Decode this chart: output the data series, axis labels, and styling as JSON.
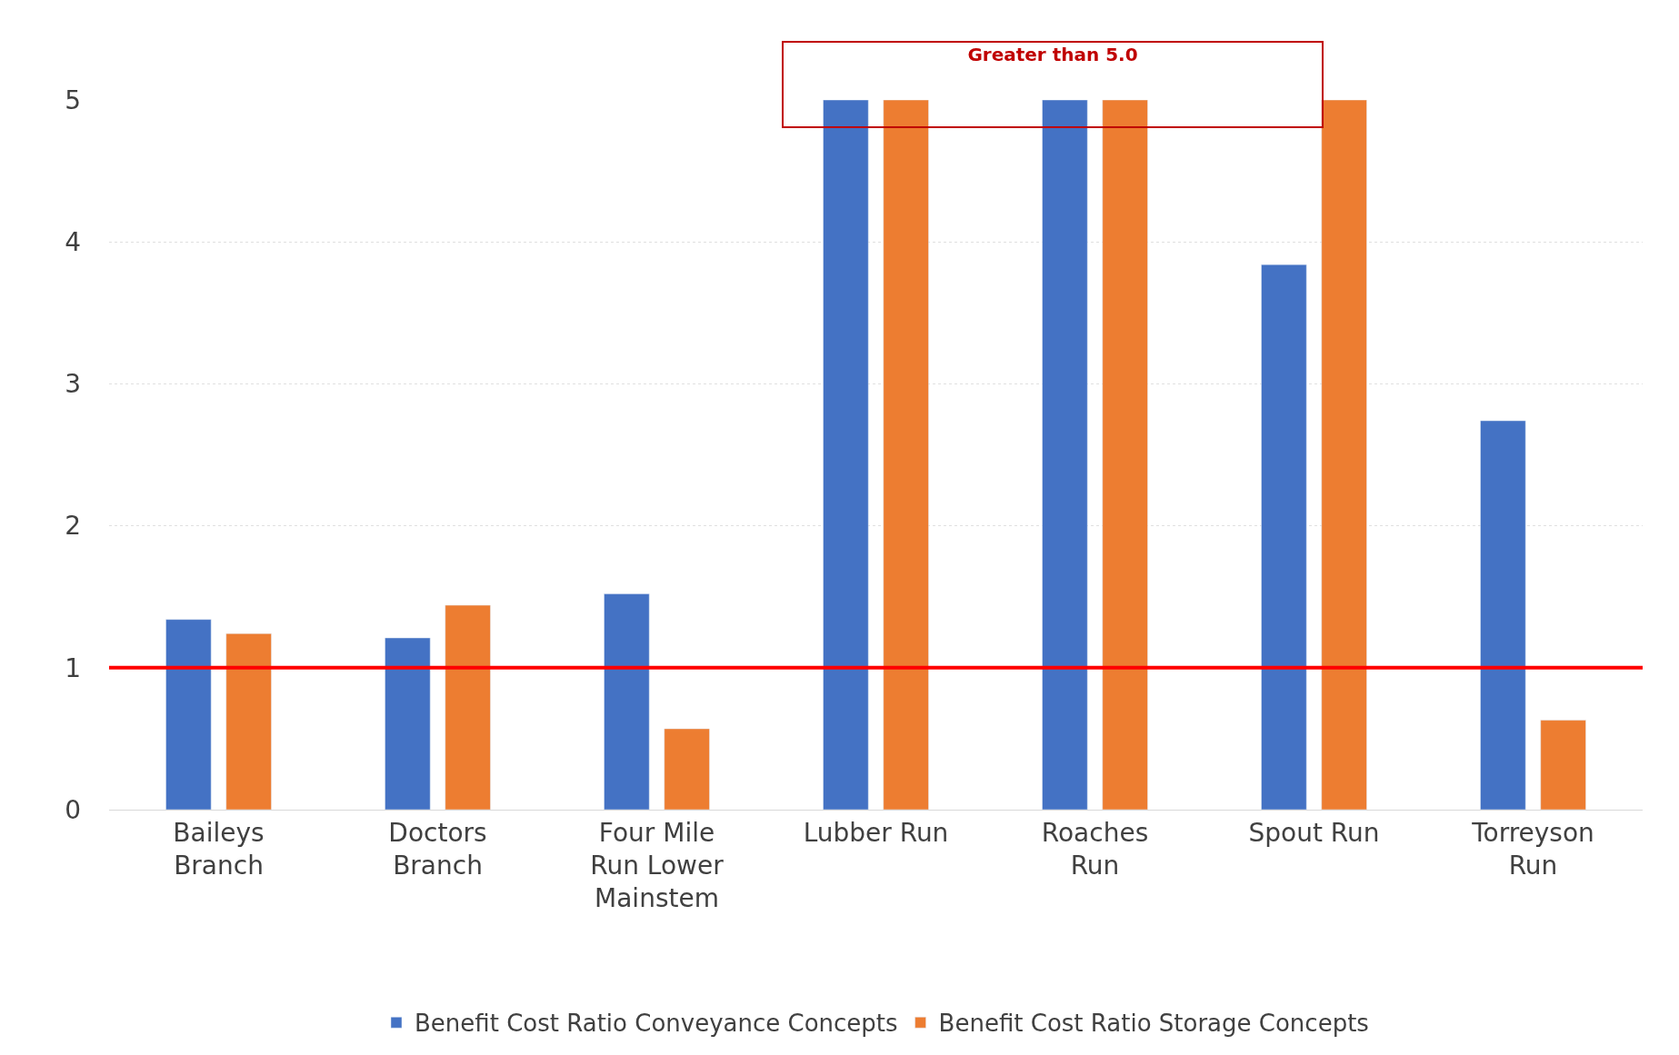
{
  "chart_data": {
    "type": "bar",
    "categories": [
      "Baileys Branch",
      "Doctors Branch",
      "Four Mile Run Lower Mainstem",
      "Lubber Run",
      "Roaches Run",
      "Spout Run",
      "Torreyson Run"
    ],
    "series": [
      {
        "name": "Benefit Cost Ratio Conveyance Concepts",
        "color": "#4472c4",
        "values": [
          1.34,
          1.21,
          1.52,
          5,
          5,
          3.84,
          2.74
        ]
      },
      {
        "name": "Benefit Cost Ratio Storage Concepts",
        "color": "#ed7d31",
        "values": [
          1.24,
          1.44,
          0.57,
          5,
          5,
          5,
          0.63
        ]
      }
    ],
    "ylim": [
      0,
      5
    ],
    "yticks": [
      0,
      1,
      2,
      3,
      4,
      5
    ],
    "grid": "y",
    "legend": "bottom",
    "ref_lines": [
      {
        "axis": "y",
        "value": 1,
        "color": "#ff0000"
      }
    ],
    "annotations": [
      "Greater than 5.0"
    ]
  }
}
